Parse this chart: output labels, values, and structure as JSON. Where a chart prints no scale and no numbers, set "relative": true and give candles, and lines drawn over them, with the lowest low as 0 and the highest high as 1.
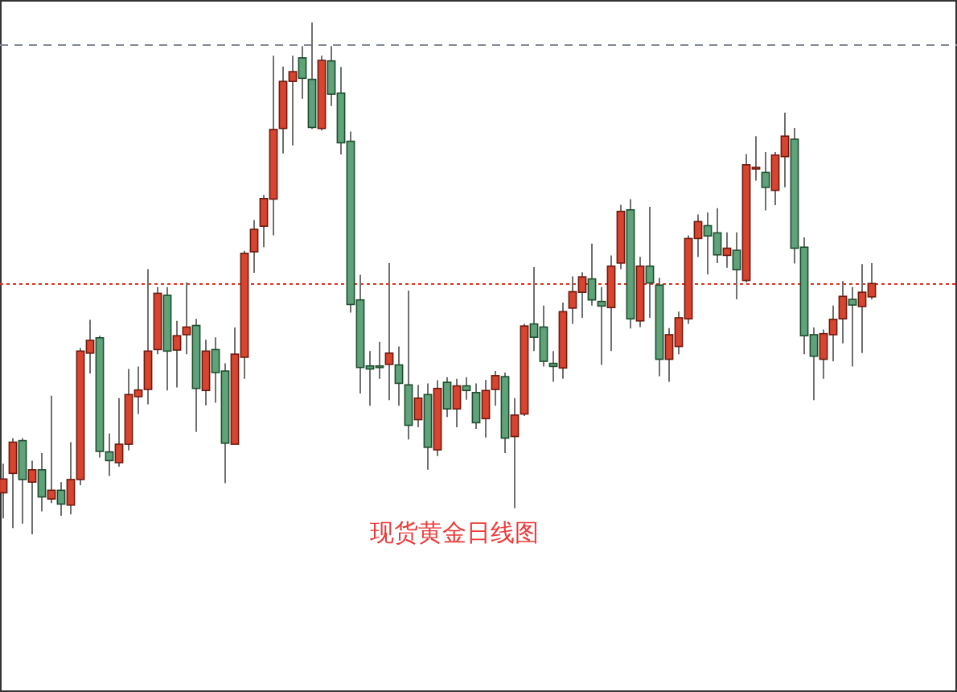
{
  "chart_data": {
    "type": "candlestick",
    "title": "现货黄金日线图",
    "relative": true,
    "categories": [
      null,
      null,
      null,
      null,
      null,
      null,
      null,
      null,
      null,
      null,
      null,
      null,
      null,
      null,
      null,
      null,
      null,
      null,
      null,
      null,
      null,
      null,
      null,
      null,
      null,
      null,
      null,
      null,
      null,
      null,
      null,
      null,
      null,
      null,
      null,
      null,
      null,
      null,
      null,
      null,
      null,
      null,
      null,
      null,
      null,
      null,
      null,
      null,
      null,
      null,
      null,
      null,
      null,
      null,
      null,
      null,
      null,
      null,
      null,
      null,
      null,
      null,
      null,
      null,
      null,
      null,
      null,
      null,
      null,
      null,
      null,
      null,
      null,
      null,
      null,
      null,
      null,
      null,
      null,
      null,
      null,
      null,
      null,
      null,
      null,
      null,
      null,
      null,
      null,
      null,
      null
    ],
    "ohlc": [
      [
        0.081,
        0.138,
        0.031,
        0.108
      ],
      [
        0.119,
        0.188,
        0.012,
        0.18
      ],
      [
        0.183,
        0.188,
        0.021,
        0.107
      ],
      [
        0.102,
        0.144,
        0,
        0.126
      ],
      [
        0.126,
        0.159,
        0.045,
        0.073
      ],
      [
        0.069,
        0.271,
        0.061,
        0.086
      ],
      [
        0.086,
        0.102,
        0.036,
        0.059
      ],
      [
        0.057,
        0.18,
        0.039,
        0.107
      ],
      [
        0.107,
        0.364,
        0.096,
        0.358
      ],
      [
        0.354,
        0.419,
        0.314,
        0.379
      ],
      [
        0.384,
        0.388,
        0.15,
        0.162
      ],
      [
        0.161,
        0.197,
        0.114,
        0.144
      ],
      [
        0.14,
        0.266,
        0.132,
        0.176
      ],
      [
        0.176,
        0.323,
        0.164,
        0.273
      ],
      [
        0.269,
        0.328,
        0.235,
        0.282
      ],
      [
        0.283,
        0.518,
        0.254,
        0.358
      ],
      [
        0.361,
        0.483,
        0.352,
        0.471
      ],
      [
        0.467,
        0.483,
        0.281,
        0.358
      ],
      [
        0.36,
        0.417,
        0.287,
        0.388
      ],
      [
        0.39,
        0.492,
        0.352,
        0.405
      ],
      [
        0.408,
        0.421,
        0.2,
        0.285
      ],
      [
        0.281,
        0.38,
        0.252,
        0.358
      ],
      [
        0.361,
        0.385,
        0.257,
        0.316
      ],
      [
        0.319,
        0.334,
        0.1,
        0.178
      ],
      [
        0.176,
        0.404,
        0.176,
        0.352
      ],
      [
        0.346,
        0.554,
        0.304,
        0.549
      ],
      [
        0.552,
        0.614,
        0.511,
        0.596
      ],
      [
        0.602,
        0.663,
        0.561,
        0.656
      ],
      [
        0.655,
        0.935,
        0.584,
        0.791
      ],
      [
        0.793,
        0.914,
        0.744,
        0.885
      ],
      [
        0.885,
        0.935,
        0.76,
        0.904
      ],
      [
        0.931,
        0.954,
        0.851,
        0.891
      ],
      [
        0.889,
        1,
        0.792,
        0.795
      ],
      [
        0.793,
        0.935,
        0.789,
        0.926
      ],
      [
        0.925,
        0.954,
        0.837,
        0.86
      ],
      [
        0.862,
        0.913,
        0.742,
        0.765
      ],
      [
        0.768,
        0.787,
        0.433,
        0.449
      ],
      [
        0.458,
        0.507,
        0.275,
        0.326
      ],
      [
        0.329,
        0.358,
        0.251,
        0.323
      ],
      [
        0.329,
        0.376,
        0.304,
        0.326
      ],
      [
        0.332,
        0.53,
        0.262,
        0.354
      ],
      [
        0.331,
        0.367,
        0.251,
        0.295
      ],
      [
        0.292,
        0.476,
        0.185,
        0.213
      ],
      [
        0.224,
        0.292,
        0.209,
        0.266
      ],
      [
        0.273,
        0.295,
        0.126,
        0.17
      ],
      [
        0.165,
        0.301,
        0.153,
        0.285
      ],
      [
        0.297,
        0.307,
        0.229,
        0.245
      ],
      [
        0.245,
        0.304,
        0.209,
        0.29
      ],
      [
        0.29,
        0.307,
        0.263,
        0.281
      ],
      [
        0.277,
        0.295,
        0.206,
        0.218
      ],
      [
        0.226,
        0.302,
        0.189,
        0.281
      ],
      [
        0.283,
        0.319,
        0.251,
        0.31
      ],
      [
        0.308,
        0.316,
        0.159,
        0.188
      ],
      [
        0.191,
        0.266,
        0.051,
        0.233
      ],
      [
        0.235,
        0.411,
        0.231,
        0.407
      ],
      [
        0.411,
        0.522,
        0.358,
        0.385
      ],
      [
        0.405,
        0.447,
        0.328,
        0.338
      ],
      [
        0.334,
        0.358,
        0.298,
        0.328
      ],
      [
        0.325,
        0.453,
        0.304,
        0.435
      ],
      [
        0.442,
        0.504,
        0.411,
        0.474
      ],
      [
        0.473,
        0.512,
        0.423,
        0.503
      ],
      [
        0.499,
        0.568,
        0.447,
        0.458
      ],
      [
        0.455,
        0.483,
        0.331,
        0.446
      ],
      [
        0.443,
        0.545,
        0.358,
        0.524
      ],
      [
        0.53,
        0.644,
        0.518,
        0.631
      ],
      [
        0.634,
        0.655,
        0.402,
        0.421
      ],
      [
        0.417,
        0.542,
        0.405,
        0.524
      ],
      [
        0.524,
        0.64,
        0.423,
        0.491
      ],
      [
        0.487,
        0.501,
        0.309,
        0.342
      ],
      [
        0.342,
        0.403,
        0.298,
        0.39
      ],
      [
        0.367,
        0.435,
        0.352,
        0.423
      ],
      [
        0.421,
        0.584,
        0.411,
        0.578
      ],
      [
        0.578,
        0.625,
        0.542,
        0.611
      ],
      [
        0.603,
        0.629,
        0.508,
        0.583
      ],
      [
        0.589,
        0.637,
        0.53,
        0.546
      ],
      [
        0.545,
        0.59,
        0.521,
        0.559
      ],
      [
        0.555,
        0.59,
        0.459,
        0.517
      ],
      [
        0.496,
        0.743,
        0.492,
        0.722
      ],
      [
        0.715,
        0.778,
        0.691,
        0.717
      ],
      [
        0.707,
        0.747,
        0.633,
        0.678
      ],
      [
        0.672,
        0.747,
        0.643,
        0.741
      ],
      [
        0.738,
        0.824,
        0.678,
        0.778
      ],
      [
        0.772,
        0.794,
        0.529,
        0.559
      ],
      [
        0.561,
        0.58,
        0.352,
        0.388
      ],
      [
        0.39,
        0.404,
        0.262,
        0.348
      ],
      [
        0.342,
        0.4,
        0.304,
        0.392
      ],
      [
        0.39,
        0.447,
        0.338,
        0.42
      ],
      [
        0.421,
        0.495,
        0.373,
        0.465
      ],
      [
        0.459,
        0.483,
        0.328,
        0.448
      ],
      [
        0.445,
        0.528,
        0.354,
        0.473
      ],
      [
        0.464,
        0.53,
        0.459,
        0.49
      ]
    ],
    "ref_lines": [
      {
        "axis": "y",
        "value": 0.956,
        "color": "#7f8a94",
        "line_style": "dashed"
      },
      {
        "axis": "y",
        "value": 0.489,
        "color": "#e0321e",
        "line_style": "dotted"
      }
    ]
  }
}
